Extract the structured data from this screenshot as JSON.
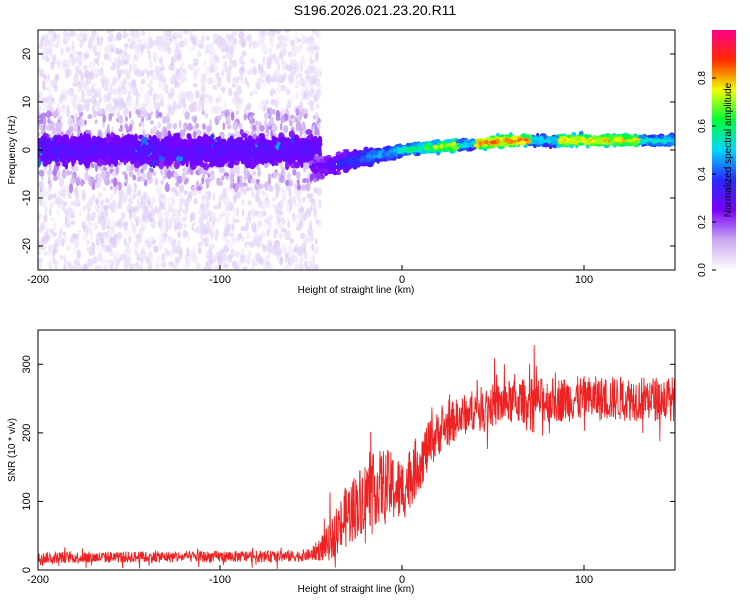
{
  "title": "S196.2026.021.23.20.R11",
  "chart_data": [
    {
      "type": "heatmap",
      "name": "spectrogram",
      "xlabel": "Height of straight line (km)",
      "ylabel": "Frequency (Hz)",
      "xlim": [
        -200,
        150
      ],
      "ylim": [
        -25,
        25
      ],
      "xticks": [
        -200,
        -100,
        0,
        100
      ],
      "yticks": [
        -20,
        -10,
        0,
        10,
        20
      ],
      "colorbar": {
        "label": "Normalized spectral amplitude",
        "range": [
          0,
          1
        ],
        "ticks": [
          0.0,
          0.2,
          0.4,
          0.6,
          0.8
        ],
        "colors": [
          "#ffffff",
          "#c9a8f0",
          "#7a00ff",
          "#2a2aff",
          "#00d8ff",
          "#00ff3a",
          "#f0ff00",
          "#ff2a00",
          "#ff0088"
        ]
      },
      "features": {
        "noise_region_x": [
          -200,
          -45
        ],
        "noise_region_spread_hz": 25,
        "core_band_hz": [
          -6,
          6
        ],
        "ridge_x": [
          -50,
          150
        ],
        "ridge_freq_hz": [
          -4,
          2
        ],
        "peak_amplitude_x": [
          0,
          130
        ]
      }
    },
    {
      "type": "line",
      "name": "snr",
      "xlabel": "Height of straight line (km)",
      "ylabel": "SNR (10 * v/v)",
      "xlim": [
        -200,
        150
      ],
      "ylim": [
        0,
        350
      ],
      "xticks": [
        -200,
        -100,
        0,
        100
      ],
      "yticks": [
        0,
        100,
        200,
        300
      ],
      "color": "#ee2222",
      "series_profile": {
        "x": [
          -200,
          -60,
          -50,
          -40,
          -30,
          -20,
          -10,
          0,
          10,
          20,
          30,
          40,
          60,
          80,
          100,
          150
        ],
        "mean": [
          18,
          20,
          22,
          40,
          80,
          110,
          125,
          115,
          160,
          200,
          220,
          235,
          245,
          248,
          250,
          250
        ],
        "spread": [
          14,
          14,
          15,
          45,
          80,
          85,
          90,
          80,
          70,
          55,
          50,
          50,
          55,
          55,
          55,
          55
        ]
      }
    }
  ]
}
